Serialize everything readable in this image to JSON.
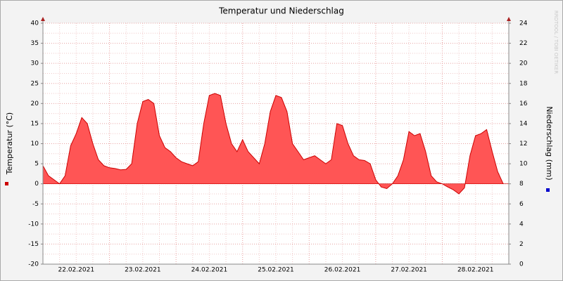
{
  "chart_data": {
    "type": "area",
    "title": "Temperatur und Niederschlag",
    "y_label": "Temperatur (°C)",
    "y2_label": "Niederschlag (mm)",
    "watermark": "RRDTOOL / TOBI OETIKER",
    "categories": [
      "22.02.2021",
      "23.02.2021",
      "24.02.2021",
      "25.02.2021",
      "26.02.2021",
      "27.02.2021",
      "28.02.2021"
    ],
    "series": [
      {
        "color": "#cc0000",
        "fill": "#ff5555",
        "values": [
          [
            4.5,
            2,
            1,
            0,
            2,
            9.5,
            12.5,
            16.5,
            15,
            10,
            6,
            4.5
          ],
          [
            4,
            3.8,
            3.5,
            3.6,
            5,
            15,
            20.5,
            21,
            20,
            12,
            9,
            8
          ],
          [
            6.5,
            5.5,
            5,
            4.5,
            5.5,
            15,
            22,
            22.5,
            22,
            15,
            10,
            8
          ],
          [
            11,
            8,
            6.5,
            5,
            10,
            18,
            22,
            21.5,
            18,
            10,
            8,
            6
          ],
          [
            6.5,
            7,
            6,
            5,
            6,
            15,
            14.5,
            10,
            7,
            6,
            5.8,
            5
          ],
          [
            1,
            -0.8,
            -1.2,
            0,
            2,
            6,
            13,
            12,
            12.5,
            8,
            2,
            0.5
          ],
          [
            0,
            -0.8,
            -1.5,
            -2.5,
            -1,
            7,
            12,
            12.5,
            13.5,
            8,
            3,
            0
          ]
        ]
      }
    ],
    "y_marker_color": "#cc0000",
    "y2_marker_color": "#0000cc",
    "ylim": [
      -20,
      40
    ],
    "yticks": [
      -20,
      -15,
      -10,
      -5,
      0,
      5,
      10,
      15,
      20,
      25,
      30,
      35,
      40
    ],
    "y2lim": [
      0,
      24
    ],
    "y2ticks": [
      0,
      2,
      4,
      6,
      8,
      10,
      12,
      14,
      16,
      18,
      20,
      22,
      24
    ],
    "grid": true
  }
}
